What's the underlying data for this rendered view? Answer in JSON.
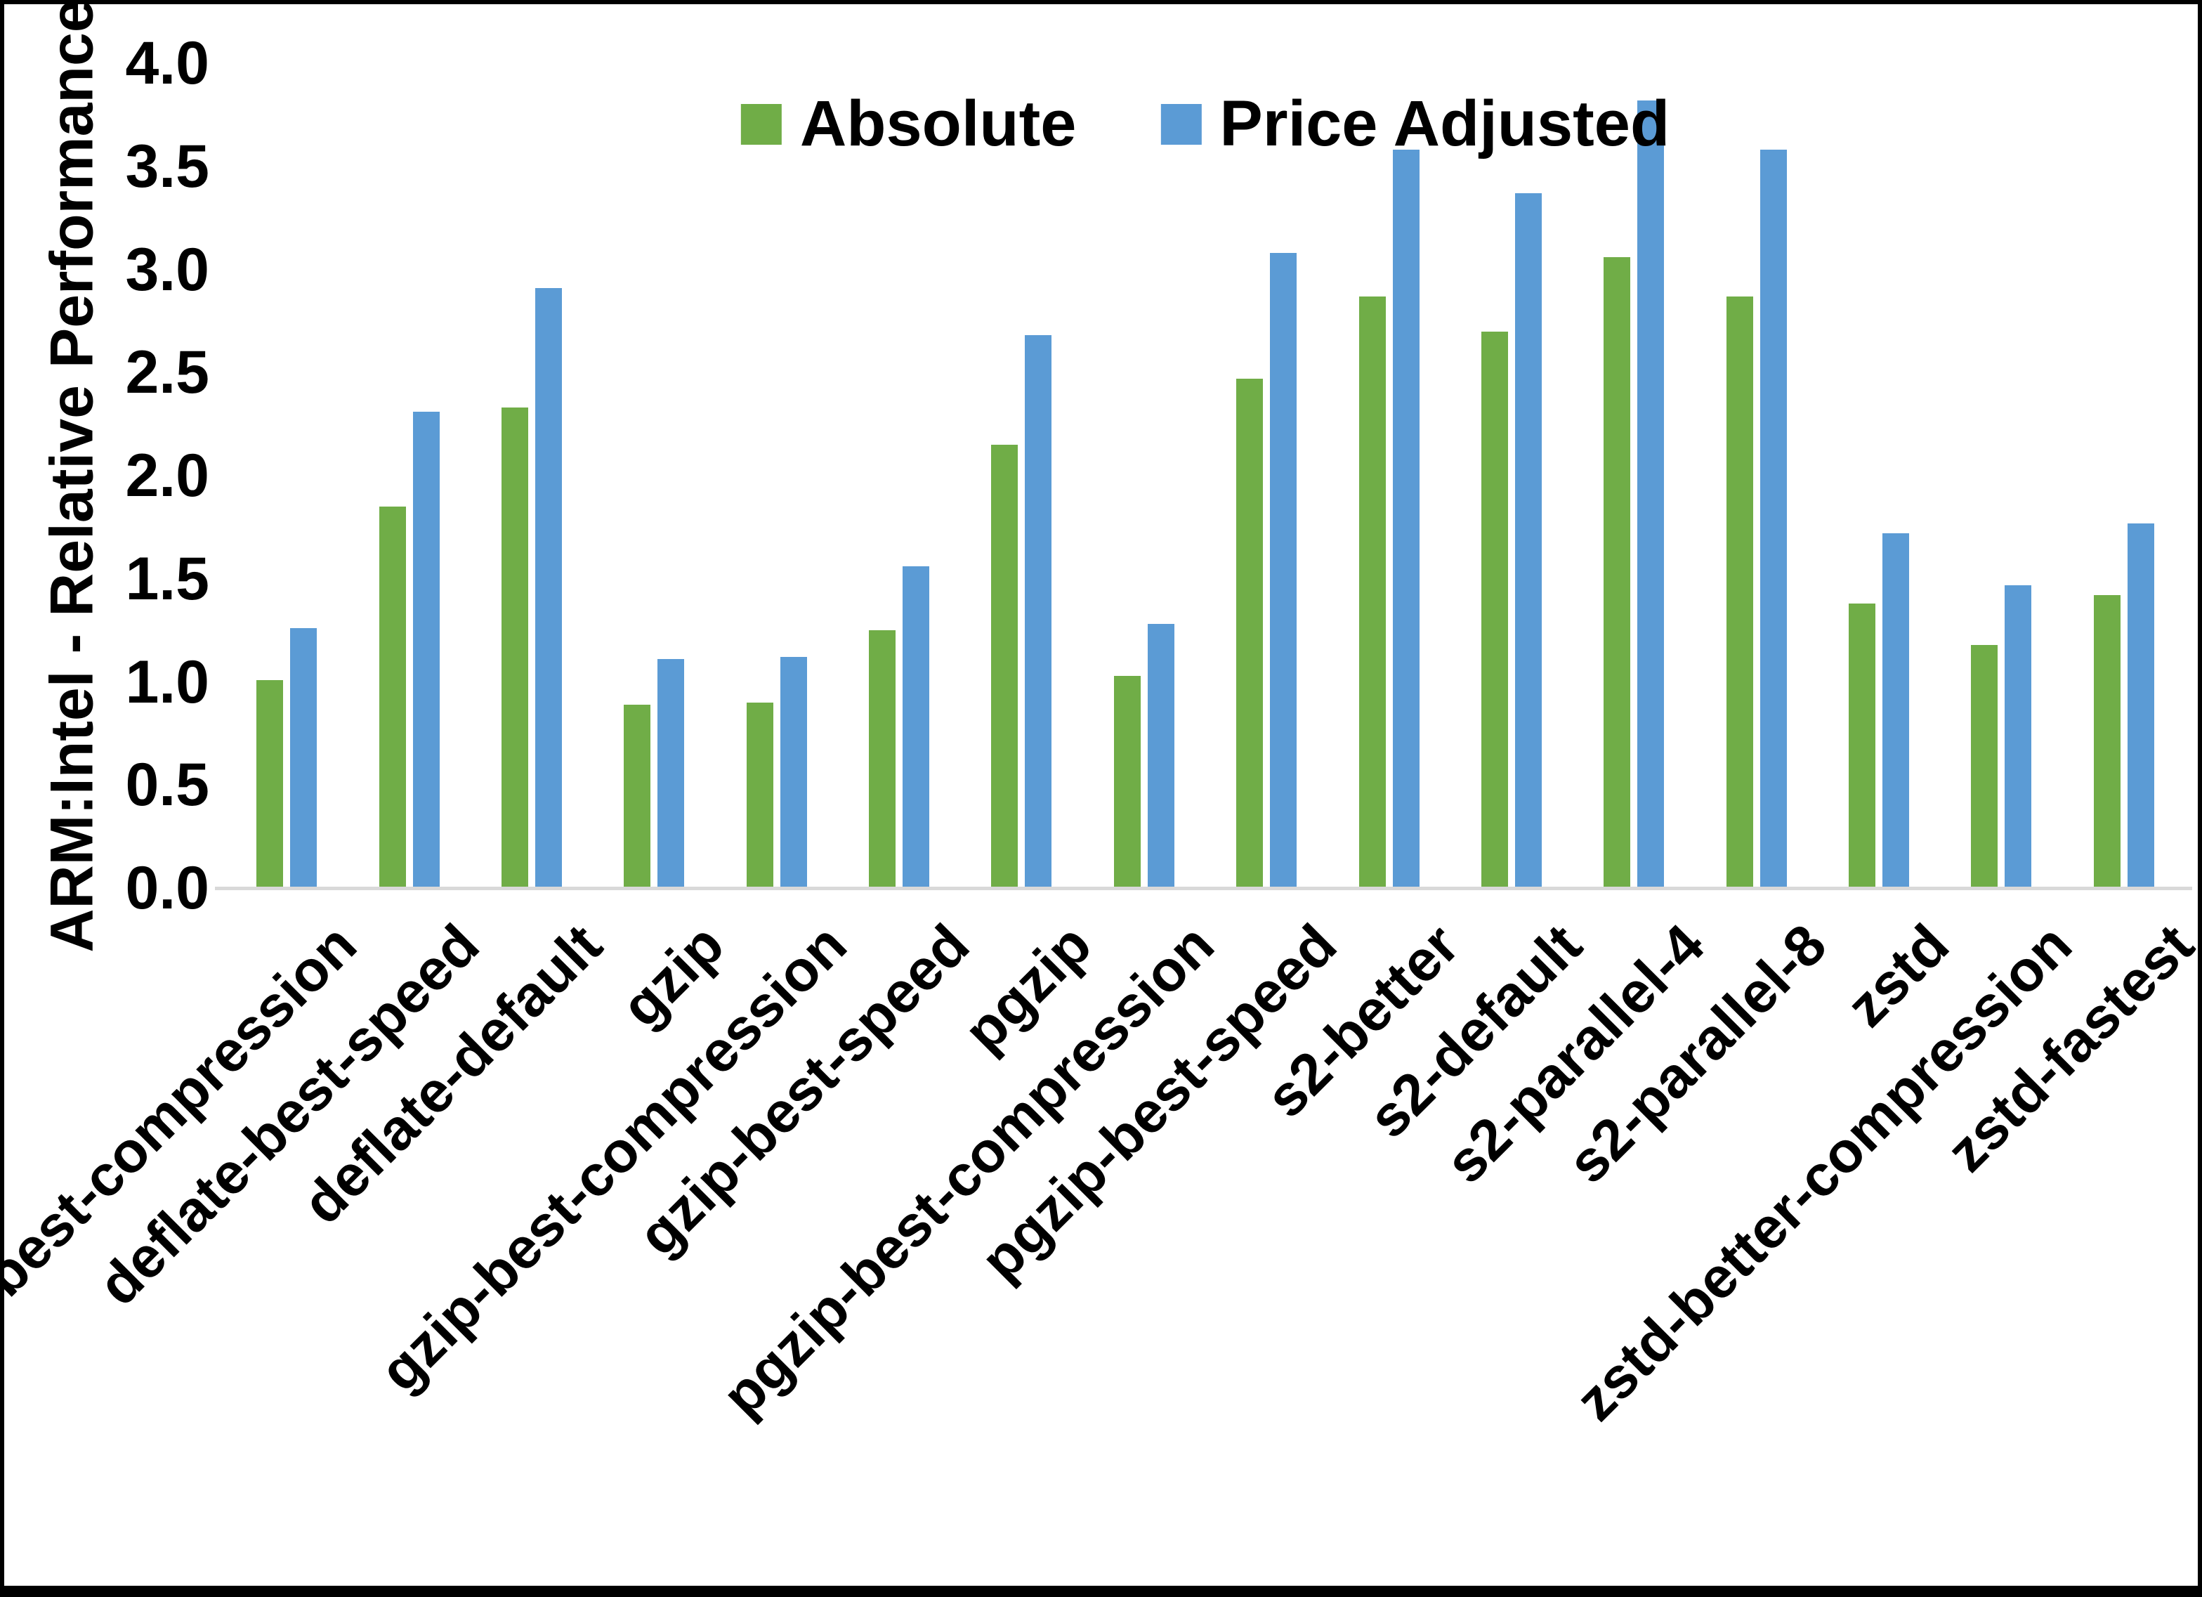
{
  "accent_colors": {
    "absolute_green": "#70AD47",
    "price_adjusted_blue": "#5B9BD5",
    "axis_line_gray": "#D9D9D9",
    "frame_border": "#000000"
  },
  "chart_data": {
    "type": "bar",
    "title": "",
    "xlabel": "",
    "ylabel": "ARM:Intel - Relative Performance",
    "ylim": [
      0,
      4
    ],
    "ytick_labels": [
      "4.0",
      "3.5",
      "3.0",
      "2.5",
      "2.0",
      "1.5",
      "1.0",
      "0.5",
      "0.0"
    ],
    "grid": "off",
    "legend_position": "top-center",
    "categories": [
      "deflate-best-compression",
      "deflate-best-speed",
      "deflate-default",
      "gzip",
      "gzip-best-compression",
      "gzip-best-speed",
      "pgzip",
      "pgzip-best-compression",
      "pgzip-best-speed",
      "s2-better",
      "s2-default",
      "s2-parallel-4",
      "s2-parallel-8",
      "zstd",
      "zstd-better-compression",
      "zstd-fastest"
    ],
    "series": [
      {
        "name": "Absolute",
        "color": "#70AD47",
        "values": [
          1.01,
          1.85,
          2.33,
          0.89,
          0.9,
          1.25,
          2.15,
          1.03,
          2.47,
          2.87,
          2.7,
          3.06,
          2.87,
          1.38,
          1.18,
          1.42
        ]
      },
      {
        "name": "Price Adjusted",
        "color": "#5B9BD5",
        "values": [
          1.26,
          2.31,
          2.91,
          1.11,
          1.12,
          1.56,
          2.68,
          1.28,
          3.08,
          3.58,
          3.37,
          3.82,
          3.58,
          1.72,
          1.47,
          1.77
        ]
      }
    ]
  }
}
